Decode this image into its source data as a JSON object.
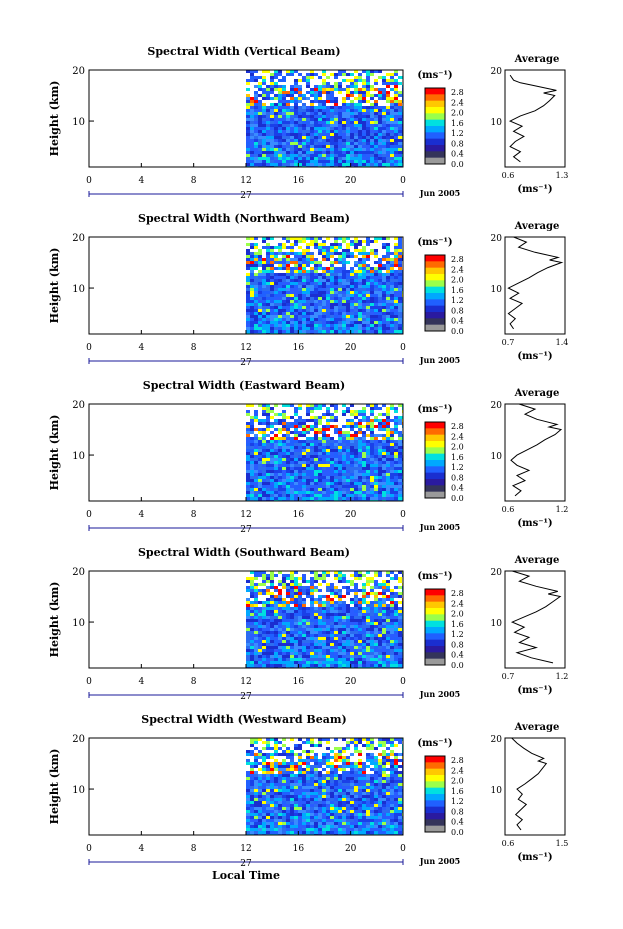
{
  "page": {
    "xlabel": "Local Time"
  },
  "colorbar": {
    "unit": "(ms⁻¹)",
    "ticks": [
      "2.8",
      "2.4",
      "2.0",
      "1.6",
      "1.2",
      "0.8",
      "0.4",
      "0.0"
    ],
    "colors": [
      "#ff0000",
      "#ff6a00",
      "#ffc800",
      "#ffff00",
      "#9bff4a",
      "#00e0e0",
      "#00a8ff",
      "#2060ff",
      "#1a2ed0",
      "#2a1aa0",
      "#34345a",
      "#9a9a9a"
    ]
  },
  "chart_data": [
    {
      "type": "heatmap",
      "title": "Spectral Width (Vertical Beam)",
      "ylabel": "Height (km)",
      "xlabel": "",
      "x_ticks": [
        "0",
        "4",
        "8",
        "12",
        "16",
        "20",
        "0"
      ],
      "xlim": [
        0,
        24
      ],
      "data_start_hour": 12,
      "y_ticks": [
        "20",
        "10"
      ],
      "ylim": [
        1,
        20
      ],
      "date_label": "27",
      "month_label": "Jun 2005",
      "avg_title": "Average",
      "avg_xticks": [
        "0.6",
        "1.3"
      ],
      "avg_xlim": [
        0.6,
        1.3
      ],
      "avg_xlabel": "(ms⁻¹)",
      "average_profile": [
        {
          "h": 2,
          "v": 0.78
        },
        {
          "h": 3,
          "v": 0.7
        },
        {
          "h": 4,
          "v": 0.78
        },
        {
          "h": 5,
          "v": 0.66
        },
        {
          "h": 6,
          "v": 0.72
        },
        {
          "h": 7,
          "v": 0.82
        },
        {
          "h": 8,
          "v": 0.7
        },
        {
          "h": 9,
          "v": 0.8
        },
        {
          "h": 10,
          "v": 0.66
        },
        {
          "h": 11,
          "v": 0.78
        },
        {
          "h": 12,
          "v": 0.95
        },
        {
          "h": 13,
          "v": 1.05
        },
        {
          "h": 14,
          "v": 1.12
        },
        {
          "h": 15,
          "v": 1.18
        },
        {
          "h": 15.5,
          "v": 1.05
        },
        {
          "h": 16,
          "v": 1.2
        },
        {
          "h": 17,
          "v": 0.92
        },
        {
          "h": 17.5,
          "v": 0.78
        },
        {
          "h": 18,
          "v": 0.7
        },
        {
          "h": 19,
          "v": 0.66
        }
      ]
    },
    {
      "type": "heatmap",
      "title": "Spectral Width (Northward Beam)",
      "ylabel": "Height (km)",
      "xlabel": "",
      "x_ticks": [
        "0",
        "4",
        "8",
        "12",
        "16",
        "20",
        "0"
      ],
      "xlim": [
        0,
        24
      ],
      "data_start_hour": 12,
      "y_ticks": [
        "20",
        "10"
      ],
      "ylim": [
        1,
        20
      ],
      "date_label": "27",
      "month_label": "Jun 2005",
      "avg_title": "Average",
      "avg_xticks": [
        "0.7",
        "1.4"
      ],
      "avg_xlim": [
        0.7,
        1.4
      ],
      "avg_xlabel": "(ms⁻¹)",
      "average_profile": [
        {
          "h": 2,
          "v": 0.8
        },
        {
          "h": 3,
          "v": 0.76
        },
        {
          "h": 4,
          "v": 0.82
        },
        {
          "h": 5,
          "v": 0.74
        },
        {
          "h": 6,
          "v": 0.82
        },
        {
          "h": 7,
          "v": 0.9
        },
        {
          "h": 8,
          "v": 0.76
        },
        {
          "h": 9,
          "v": 0.86
        },
        {
          "h": 10,
          "v": 0.74
        },
        {
          "h": 11,
          "v": 0.86
        },
        {
          "h": 12,
          "v": 0.98
        },
        {
          "h": 13,
          "v": 1.08
        },
        {
          "h": 14,
          "v": 1.2
        },
        {
          "h": 15,
          "v": 1.36
        },
        {
          "h": 15.5,
          "v": 1.22
        },
        {
          "h": 16,
          "v": 1.32
        },
        {
          "h": 17,
          "v": 1.05
        },
        {
          "h": 18,
          "v": 0.86
        },
        {
          "h": 19,
          "v": 0.95
        },
        {
          "h": 20,
          "v": 0.8
        }
      ]
    },
    {
      "type": "heatmap",
      "title": "Spectral Width (Eastward Beam)",
      "ylabel": "Height (km)",
      "xlabel": "",
      "x_ticks": [
        "0",
        "4",
        "8",
        "12",
        "16",
        "20",
        "0"
      ],
      "xlim": [
        0,
        24
      ],
      "data_start_hour": 12,
      "y_ticks": [
        "20",
        "10"
      ],
      "ylim": [
        1,
        20
      ],
      "date_label": "27",
      "month_label": "Jun 2005",
      "avg_title": "Average",
      "avg_xticks": [
        "0.6",
        "1.2"
      ],
      "avg_xlim": [
        0.6,
        1.2
      ],
      "avg_xlabel": "(ms⁻¹)",
      "average_profile": [
        {
          "h": 2,
          "v": 0.7
        },
        {
          "h": 3,
          "v": 0.76
        },
        {
          "h": 4,
          "v": 0.68
        },
        {
          "h": 5,
          "v": 0.8
        },
        {
          "h": 6,
          "v": 0.72
        },
        {
          "h": 7,
          "v": 0.84
        },
        {
          "h": 8,
          "v": 0.72
        },
        {
          "h": 9,
          "v": 0.66
        },
        {
          "h": 10,
          "v": 0.72
        },
        {
          "h": 11,
          "v": 0.82
        },
        {
          "h": 12,
          "v": 0.92
        },
        {
          "h": 13,
          "v": 1.0
        },
        {
          "h": 14,
          "v": 1.1
        },
        {
          "h": 15,
          "v": 1.16
        },
        {
          "h": 15.5,
          "v": 1.04
        },
        {
          "h": 16,
          "v": 1.12
        },
        {
          "h": 17,
          "v": 0.92
        },
        {
          "h": 18,
          "v": 0.8
        },
        {
          "h": 19,
          "v": 0.9
        },
        {
          "h": 20,
          "v": 0.74
        }
      ]
    },
    {
      "type": "heatmap",
      "title": "Spectral Width (Southward Beam)",
      "ylabel": "Height (km)",
      "xlabel": "",
      "x_ticks": [
        "0",
        "4",
        "8",
        "12",
        "16",
        "20",
        "0"
      ],
      "xlim": [
        0,
        24
      ],
      "data_start_hour": 12,
      "y_ticks": [
        "20",
        "10"
      ],
      "ylim": [
        1,
        20
      ],
      "date_label": "27",
      "month_label": "Jun 2005",
      "avg_title": "Average",
      "avg_xticks": [
        "0.7",
        "1.2"
      ],
      "avg_xlim": [
        0.7,
        1.2
      ],
      "avg_xlabel": "(ms⁻¹)",
      "average_profile": [
        {
          "h": 2,
          "v": 1.1
        },
        {
          "h": 3,
          "v": 0.92
        },
        {
          "h": 4,
          "v": 0.8
        },
        {
          "h": 5,
          "v": 0.96
        },
        {
          "h": 6,
          "v": 0.82
        },
        {
          "h": 7,
          "v": 0.9
        },
        {
          "h": 8,
          "v": 0.78
        },
        {
          "h": 9,
          "v": 0.86
        },
        {
          "h": 10,
          "v": 0.76
        },
        {
          "h": 11,
          "v": 0.86
        },
        {
          "h": 12,
          "v": 0.96
        },
        {
          "h": 13,
          "v": 1.04
        },
        {
          "h": 14,
          "v": 1.1
        },
        {
          "h": 15,
          "v": 1.16
        },
        {
          "h": 15.5,
          "v": 1.06
        },
        {
          "h": 16,
          "v": 1.14
        },
        {
          "h": 17,
          "v": 0.96
        },
        {
          "h": 18,
          "v": 0.82
        },
        {
          "h": 19,
          "v": 0.9
        },
        {
          "h": 20,
          "v": 0.76
        }
      ]
    },
    {
      "type": "heatmap",
      "title": "Spectral Width (Westward Beam)",
      "ylabel": "Height (km)",
      "xlabel": "Local Time",
      "x_ticks": [
        "0",
        "4",
        "8",
        "12",
        "16",
        "20",
        "0"
      ],
      "xlim": [
        0,
        24
      ],
      "data_start_hour": 12,
      "y_ticks": [
        "20",
        "10"
      ],
      "ylim": [
        1,
        20
      ],
      "date_label": "27",
      "month_label": "Jun 2005",
      "avg_title": "Average",
      "avg_xticks": [
        "0.6",
        "1.5"
      ],
      "avg_xlim": [
        0.6,
        1.5
      ],
      "avg_xlabel": "(ms⁻¹)",
      "average_profile": [
        {
          "h": 2,
          "v": 0.84
        },
        {
          "h": 3,
          "v": 0.78
        },
        {
          "h": 4,
          "v": 0.86
        },
        {
          "h": 5,
          "v": 0.76
        },
        {
          "h": 6,
          "v": 0.84
        },
        {
          "h": 7,
          "v": 0.92
        },
        {
          "h": 8,
          "v": 0.8
        },
        {
          "h": 9,
          "v": 0.86
        },
        {
          "h": 10,
          "v": 0.78
        },
        {
          "h": 11,
          "v": 0.9
        },
        {
          "h": 12,
          "v": 1.0
        },
        {
          "h": 13,
          "v": 1.1
        },
        {
          "h": 14,
          "v": 1.16
        },
        {
          "h": 15,
          "v": 1.22
        },
        {
          "h": 15.5,
          "v": 1.1
        },
        {
          "h": 16,
          "v": 1.18
        },
        {
          "h": 17,
          "v": 1.0
        },
        {
          "h": 18,
          "v": 0.88
        },
        {
          "h": 19,
          "v": 0.78
        },
        {
          "h": 20,
          "v": 0.7
        }
      ]
    }
  ]
}
